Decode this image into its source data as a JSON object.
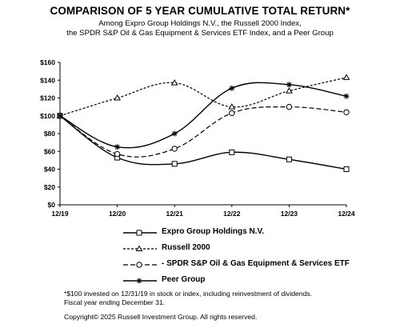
{
  "header": {
    "title": "COMPARISON OF 5 YEAR CUMULATIVE TOTAL RETURN*",
    "subtitle_line1": "Among Expro Group Holdings N.V., the Russell 2000 Index,",
    "subtitle_line2": "the SPDR S&P Oil & Gas Equipment & Services ETF Index, and a Peer Group"
  },
  "chart_data": {
    "type": "line",
    "categories": [
      "12/19",
      "12/20",
      "12/21",
      "12/22",
      "12/23",
      "12/24"
    ],
    "ylim": [
      0,
      160
    ],
    "yticks": [
      0,
      20,
      40,
      60,
      80,
      100,
      120,
      140,
      160
    ],
    "ytick_labels": [
      "$0",
      "$20",
      "$40",
      "$60",
      "$80",
      "$100",
      "$120",
      "$140",
      "$160"
    ],
    "grid": false,
    "legend_position": "bottom",
    "series": [
      {
        "name": "Expro Group Holdings N.V.",
        "values": [
          100,
          53,
          46,
          59,
          51,
          40
        ],
        "marker": "square",
        "dash": "solid"
      },
      {
        "name": "Russell 2000",
        "values": [
          100,
          120,
          137,
          110,
          128,
          143
        ],
        "marker": "triangle",
        "dash": "short-dash"
      },
      {
        "name": "SPDR S&P Oil & Gas Equipment & Services ETF",
        "values": [
          100,
          57,
          63,
          103,
          110,
          104
        ],
        "marker": "circle",
        "dash": "long-dash"
      },
      {
        "name": "Peer Group",
        "values": [
          100,
          65,
          80,
          131,
          135,
          122
        ],
        "marker": "asterisk",
        "dash": "solid"
      }
    ]
  },
  "legend": {
    "items": [
      {
        "label": "Expro Group Holdings N.V."
      },
      {
        "label": "Russell 2000"
      },
      {
        "label": "- SPDR S&P Oil & Gas Equipment & Services ETF"
      },
      {
        "label": "Peer Group"
      }
    ]
  },
  "footnotes": {
    "line1": "*$100 invested on 12/31/19 in stock or index, including reinvestment of dividends.",
    "line2": "Fiscal year ending December 31.",
    "copyright": "Copyright© 2025 Russell Investment Group. All rights reserved."
  }
}
